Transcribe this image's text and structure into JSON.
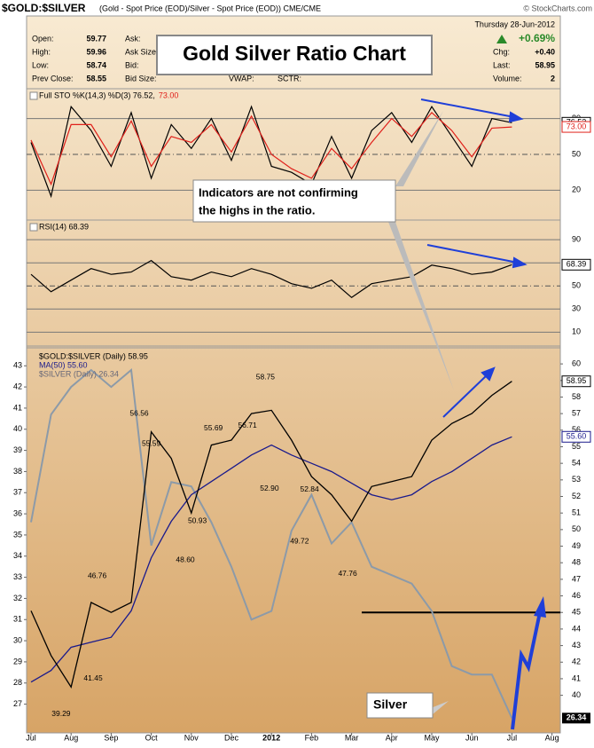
{
  "header": {
    "symbol": "$GOLD:$SILVER",
    "description": "(Gold - Spot Price (EOD)/Silver - Spot Price (EOD)) CME/CME",
    "credit": "© StockCharts.com"
  },
  "quote": {
    "left": [
      [
        "Open:",
        "59.77"
      ],
      [
        "High:",
        "59.96"
      ],
      [
        "Low:",
        "58.74"
      ],
      [
        "Prev Close:",
        "58.55"
      ]
    ],
    "middle": [
      "Ask:",
      "Ask Size:",
      "Bid:",
      "Bid Size:"
    ],
    "extra": [
      "VWAP:",
      "SCTR:"
    ],
    "date": "Thursday  28-Jun-2012",
    "change_pct": "+0.69%",
    "right": [
      [
        "Chg:",
        "+0.40"
      ],
      [
        "Last:",
        "58.95"
      ],
      [
        "Volume:",
        "2"
      ]
    ]
  },
  "title_box": "Gold Silver Ratio Chart",
  "callout": [
    "Indicators are not confirming",
    "the highs in the ratio."
  ],
  "silver_label": "Silver",
  "chart_data": [
    {
      "type": "line",
      "ylim": [
        -5,
        105
      ],
      "yticks": [
        20,
        50,
        80
      ],
      "series": [
        {
          "name": "Full STO %K(14,3) %D(3) 76.52,",
          "color": "#000000",
          "last_label": "76.52",
          "values": [
            60,
            15,
            90,
            70,
            40,
            85,
            30,
            75,
            55,
            80,
            45,
            90,
            40,
            35,
            25,
            65,
            30,
            70,
            85,
            60,
            90,
            65,
            40,
            80,
            76.52,
            null,
            null,
            null
          ]
        },
        {
          "name": "73.00",
          "color": "#e0201a",
          "last_label": "73.00",
          "values": [
            62,
            25,
            75,
            75,
            48,
            78,
            40,
            65,
            60,
            75,
            52,
            82,
            50,
            38,
            30,
            55,
            38,
            60,
            80,
            65,
            85,
            70,
            48,
            72,
            73,
            null,
            null,
            null
          ]
        }
      ]
    },
    {
      "type": "line",
      "ylim": [
        -2,
        107
      ],
      "yticks": [
        10,
        30,
        50,
        70,
        90
      ],
      "series": [
        {
          "name": "RSI(14) 68.39",
          "color": "#000000",
          "last_label": "68.39",
          "values": [
            60,
            45,
            55,
            65,
            60,
            62,
            72,
            58,
            55,
            62,
            58,
            65,
            60,
            52,
            48,
            55,
            40,
            52,
            55,
            58,
            68,
            65,
            60,
            62,
            68.39,
            null,
            null,
            null
          ]
        }
      ]
    },
    {
      "type": "line",
      "categories": [
        "Jul",
        null,
        "Aug",
        null,
        "Sep",
        null,
        "Oct",
        null,
        "Nov",
        null,
        "Dec",
        null,
        "2012",
        null,
        "Feb",
        null,
        "Mar",
        null,
        "Apr",
        null,
        "May",
        null,
        "Jun",
        null,
        "Jul",
        null,
        "Aug",
        null
      ],
      "ylim": [
        25.64,
        43.85
      ],
      "yticks": [
        27,
        28,
        29,
        30,
        31,
        32,
        33,
        34,
        35,
        36,
        37,
        38,
        39,
        40,
        41,
        42,
        43
      ],
      "y2lim": [
        37.73,
        60.97
      ],
      "y2ticks": [
        40,
        41,
        42,
        43,
        44,
        45,
        46,
        47,
        48,
        49,
        50,
        51,
        52,
        53,
        54,
        55,
        56,
        57,
        58,
        59,
        60
      ],
      "hline": 45,
      "series": [
        {
          "name": "$SILVER (Daily) 26.34",
          "color": "#8c9aa8",
          "last_label": "26.34",
          "values": [
            35.6,
            40.7,
            42,
            42.8,
            42,
            42.8,
            34.5,
            37.5,
            37.3,
            35.6,
            33.5,
            31,
            31.4,
            35.2,
            36.9,
            34.6,
            35.6,
            33.5,
            33.1,
            32.7,
            31.4,
            28.8,
            28.4,
            28.4,
            26.34,
            null,
            null,
            null
          ]
        },
        {
          "name": "MA(50) 55.60",
          "color": "#1a1a8c",
          "axis": "y2",
          "last_label": "55.60",
          "values": [
            40.8,
            41.5,
            42.9,
            43.2,
            43.5,
            45.1,
            48.3,
            50.5,
            52.1,
            52.9,
            53.7,
            54.5,
            55.1,
            54.5,
            54,
            53.5,
            52.8,
            52.1,
            51.8,
            52.1,
            52.9,
            53.5,
            54.3,
            55.1,
            55.6,
            null,
            null,
            null
          ]
        },
        {
          "name": "$GOLD:$SILVER (Daily) 58.95",
          "color": "#000000",
          "axis": "y2",
          "last_label": "58.95",
          "values": [
            45.1,
            42.4,
            40.5,
            45.6,
            45,
            45.6,
            55.9,
            54.3,
            51,
            55.1,
            55.4,
            57,
            57.2,
            55.4,
            53.2,
            52.1,
            50.5,
            52.6,
            52.9,
            53.2,
            55.4,
            56.4,
            57,
            58.1,
            58.95,
            null,
            null,
            null
          ]
        }
      ],
      "annotations": [
        {
          "x": 1.5,
          "value": 39.29,
          "label": "39.29"
        },
        {
          "x": 3.1,
          "value": 41.45,
          "label": "41.45"
        },
        {
          "x": 3.3,
          "value": 46.76,
          "label": "46.76"
        },
        {
          "x": 5.4,
          "value": 56.56,
          "label": "56.56"
        },
        {
          "x": 6,
          "value": 55.59,
          "label": "55.59"
        },
        {
          "x": 7.7,
          "value": 48.6,
          "label": "48.60"
        },
        {
          "x": 8.3,
          "value": 50.93,
          "label": "50.93"
        },
        {
          "x": 9.1,
          "value": 55.69,
          "label": "55.69"
        },
        {
          "x": 10.8,
          "value": 56.71,
          "label": "56.71"
        },
        {
          "x": 11.7,
          "value": 58.75,
          "label": "58.75"
        },
        {
          "x": 11.9,
          "value": 52.9,
          "label": "52.90"
        },
        {
          "x": 13.9,
          "value": 52.84,
          "label": "52.84"
        },
        {
          "x": 13.4,
          "value": 49.72,
          "label": "49.72"
        },
        {
          "x": 15.8,
          "value": 47.76,
          "label": "47.76"
        }
      ]
    }
  ]
}
